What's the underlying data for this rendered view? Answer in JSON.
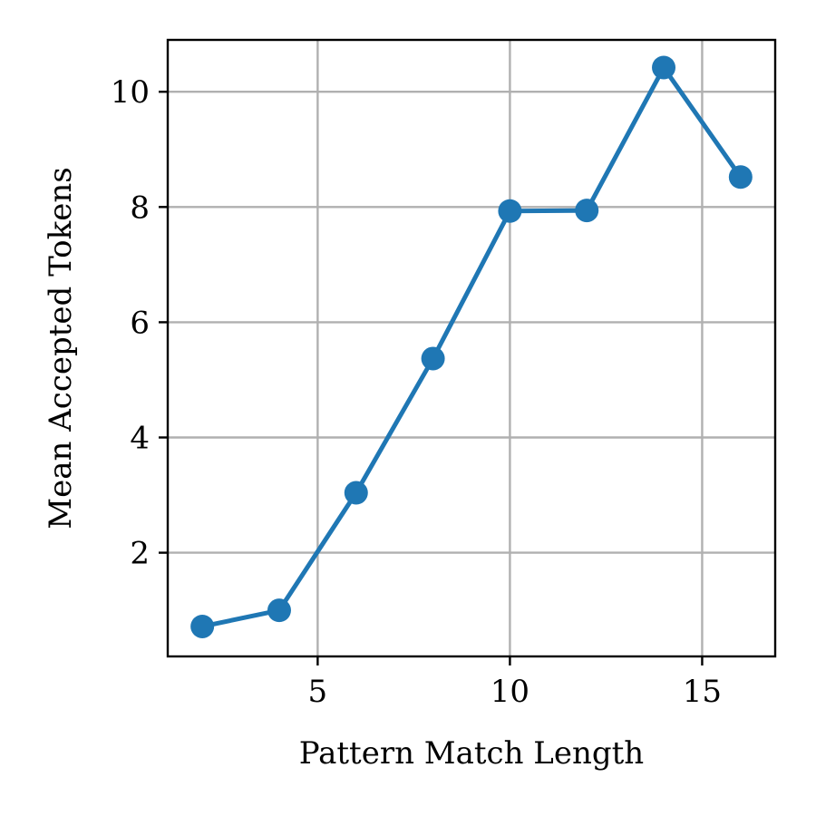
{
  "chart_data": {
    "type": "line",
    "title": "",
    "xlabel": "Pattern Match Length",
    "ylabel": "Mean Accepted Tokens",
    "xlim": [
      1.1,
      16.9
    ],
    "ylim": [
      0.2,
      10.9
    ],
    "x_ticks": [
      5,
      10,
      15
    ],
    "y_ticks": [
      2,
      4,
      6,
      8,
      10
    ],
    "grid": true,
    "legend": "none",
    "series": [
      {
        "color": "#1f77b4",
        "marker": "circle",
        "points": [
          {
            "x": 2,
            "y": 0.72
          },
          {
            "x": 4,
            "y": 1.0
          },
          {
            "x": 6,
            "y": 3.04
          },
          {
            "x": 8,
            "y": 5.37
          },
          {
            "x": 10,
            "y": 7.93
          },
          {
            "x": 12,
            "y": 7.94
          },
          {
            "x": 14,
            "y": 10.42
          },
          {
            "x": 16,
            "y": 8.52
          }
        ]
      }
    ]
  }
}
